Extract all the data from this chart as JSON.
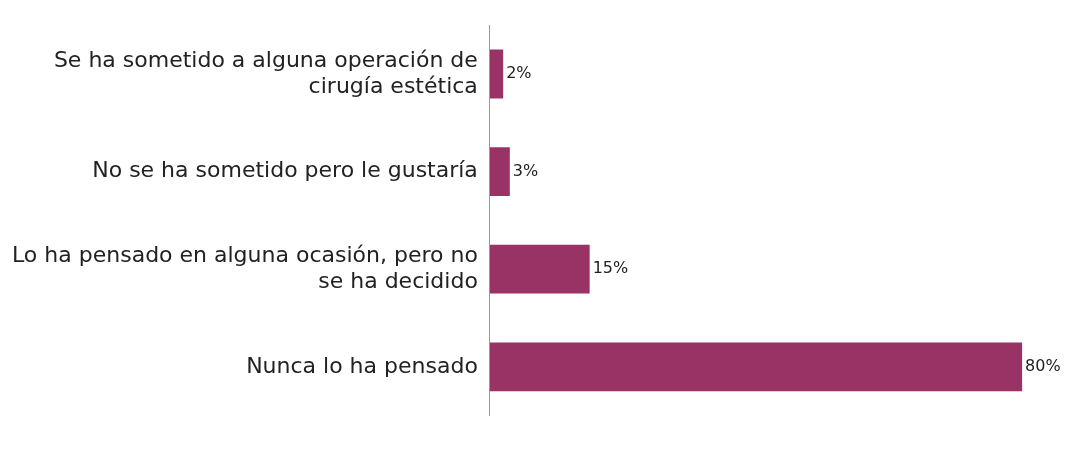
{
  "chart_data": {
    "type": "bar",
    "orientation": "horizontal",
    "categories": [
      "Se ha sometido a alguna operación de cirugía estética",
      "No se ha sometido pero le gustaría",
      "Lo ha pensado en alguna ocasión, pero no se ha decidido",
      "Nunca lo ha pensado"
    ],
    "values": [
      2,
      3,
      15,
      80
    ],
    "value_labels": [
      "2%",
      "3%",
      "15%",
      "80%"
    ],
    "color": "#993366"
  }
}
